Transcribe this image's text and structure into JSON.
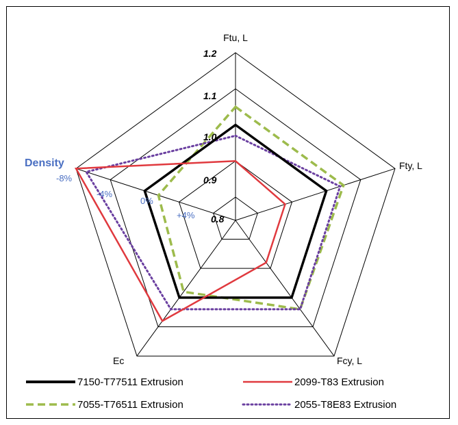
{
  "chart_data": {
    "type": "radar",
    "axes": [
      "Ftu, L",
      "Fty, L",
      "Fcy, L",
      "Ec",
      "Density"
    ],
    "rlim": [
      0.8,
      1.2
    ],
    "ticks": [
      "0.8",
      "0.9",
      "1.0",
      "1.1",
      "1.2"
    ],
    "density_ticks": [
      "+4%",
      "0%",
      "-4%",
      "-8%"
    ],
    "density_title": "Density",
    "series": [
      {
        "name": "7150-T77511 Extrusion",
        "color": "#000000",
        "style": "solid",
        "values": [
          1.0,
          1.0,
          1.0,
          1.0,
          1.0
        ]
      },
      {
        "name": "2099-T83 Extrusion",
        "color": "#e0393e",
        "style": "solid",
        "values": [
          0.9,
          0.88,
          0.88,
          1.08,
          1.2
        ]
      },
      {
        "name": "7055-T76511 Extrusion",
        "color": "#9dbb4c",
        "style": "dashed",
        "values": [
          1.05,
          1.05,
          1.04,
          0.98,
          0.96
        ]
      },
      {
        "name": "2055-T8E83 Extrusion",
        "color": "#6a3fa0",
        "style": "dotted",
        "values": [
          0.97,
          1.04,
          1.04,
          1.04,
          1.17
        ]
      }
    ],
    "legend_position": "bottom"
  }
}
